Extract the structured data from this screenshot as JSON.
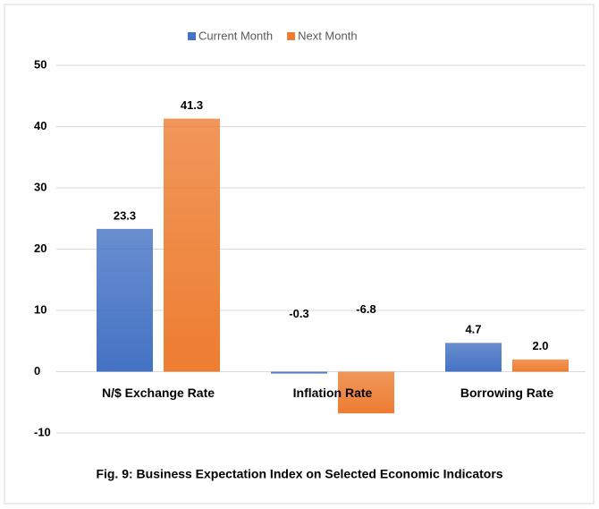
{
  "chart_data": {
    "type": "bar",
    "title": "Fig. 9: Business Expectation Index on Selected Economic Indicators",
    "categories": [
      "N/$ Exchange Rate",
      "Inflation Rate",
      "Borrowing Rate"
    ],
    "series": [
      {
        "name": "Current Month",
        "color": "#4472c4",
        "values": [
          23.3,
          -0.3,
          4.7
        ],
        "value_labels": [
          "23.3",
          "-0.3",
          "4.7"
        ]
      },
      {
        "name": "Next Month",
        "color": "#ed7d31",
        "values": [
          41.3,
          -6.8,
          2.0
        ],
        "value_labels": [
          "41.3",
          "-6.8",
          "2.0"
        ]
      }
    ],
    "ylim": [
      -10,
      50
    ],
    "yticks": [
      -10,
      0,
      10,
      20,
      30,
      40,
      50
    ],
    "grid": true,
    "legend": "top"
  }
}
